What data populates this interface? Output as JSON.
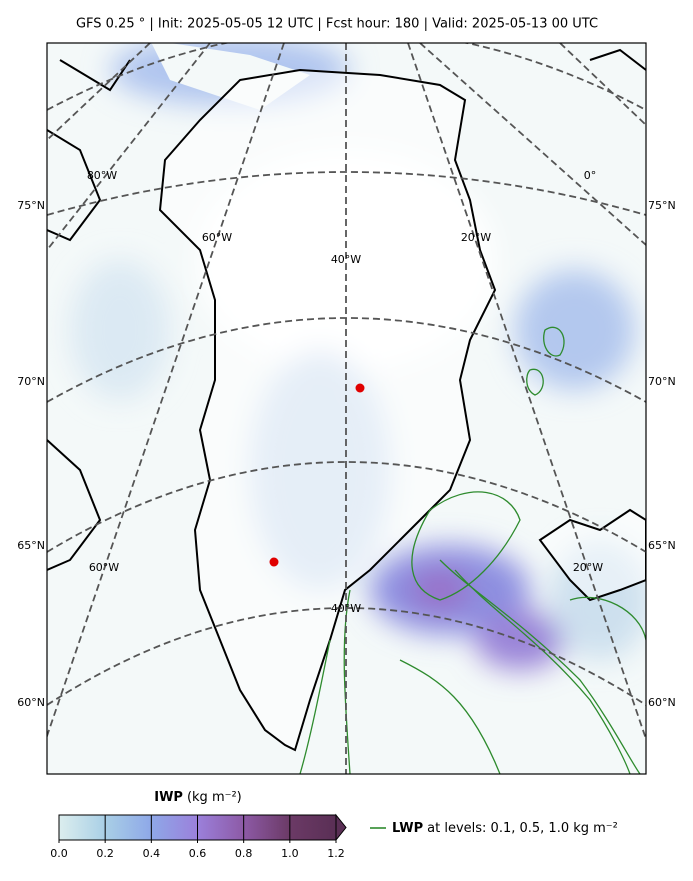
{
  "title": "GFS 0.25 °  |  Init: 2025-05-05 12 UTC  |  Fcst hour: 180  |  Valid: 2025-05-13 00 UTC",
  "map": {
    "lat_labels_left": [
      "75°N",
      "70°N",
      "65°N",
      "60°N"
    ],
    "lat_labels_right": [
      "75°N",
      "70°N",
      "65°N",
      "60°N"
    ],
    "lon_labels_upper": [
      "80°W",
      "60°W",
      "40°W",
      "20°W",
      "0°"
    ],
    "lon_labels_lower": [
      "60°W",
      "40°W",
      "20°W"
    ]
  },
  "colorbar": {
    "label": "IWP",
    "unit": "(kg m⁻²)",
    "ticks": [
      {
        "value": 0,
        "label": "0.0"
      },
      0.2,
      0.4,
      0.6,
      0.8,
      {
        "value": 1,
        "label": "1.0"
      },
      1.2
    ]
  },
  "legend": {
    "name": "LWP",
    "text": "at levels: 0.1, 0.5, 1.0  kg m⁻²"
  }
}
